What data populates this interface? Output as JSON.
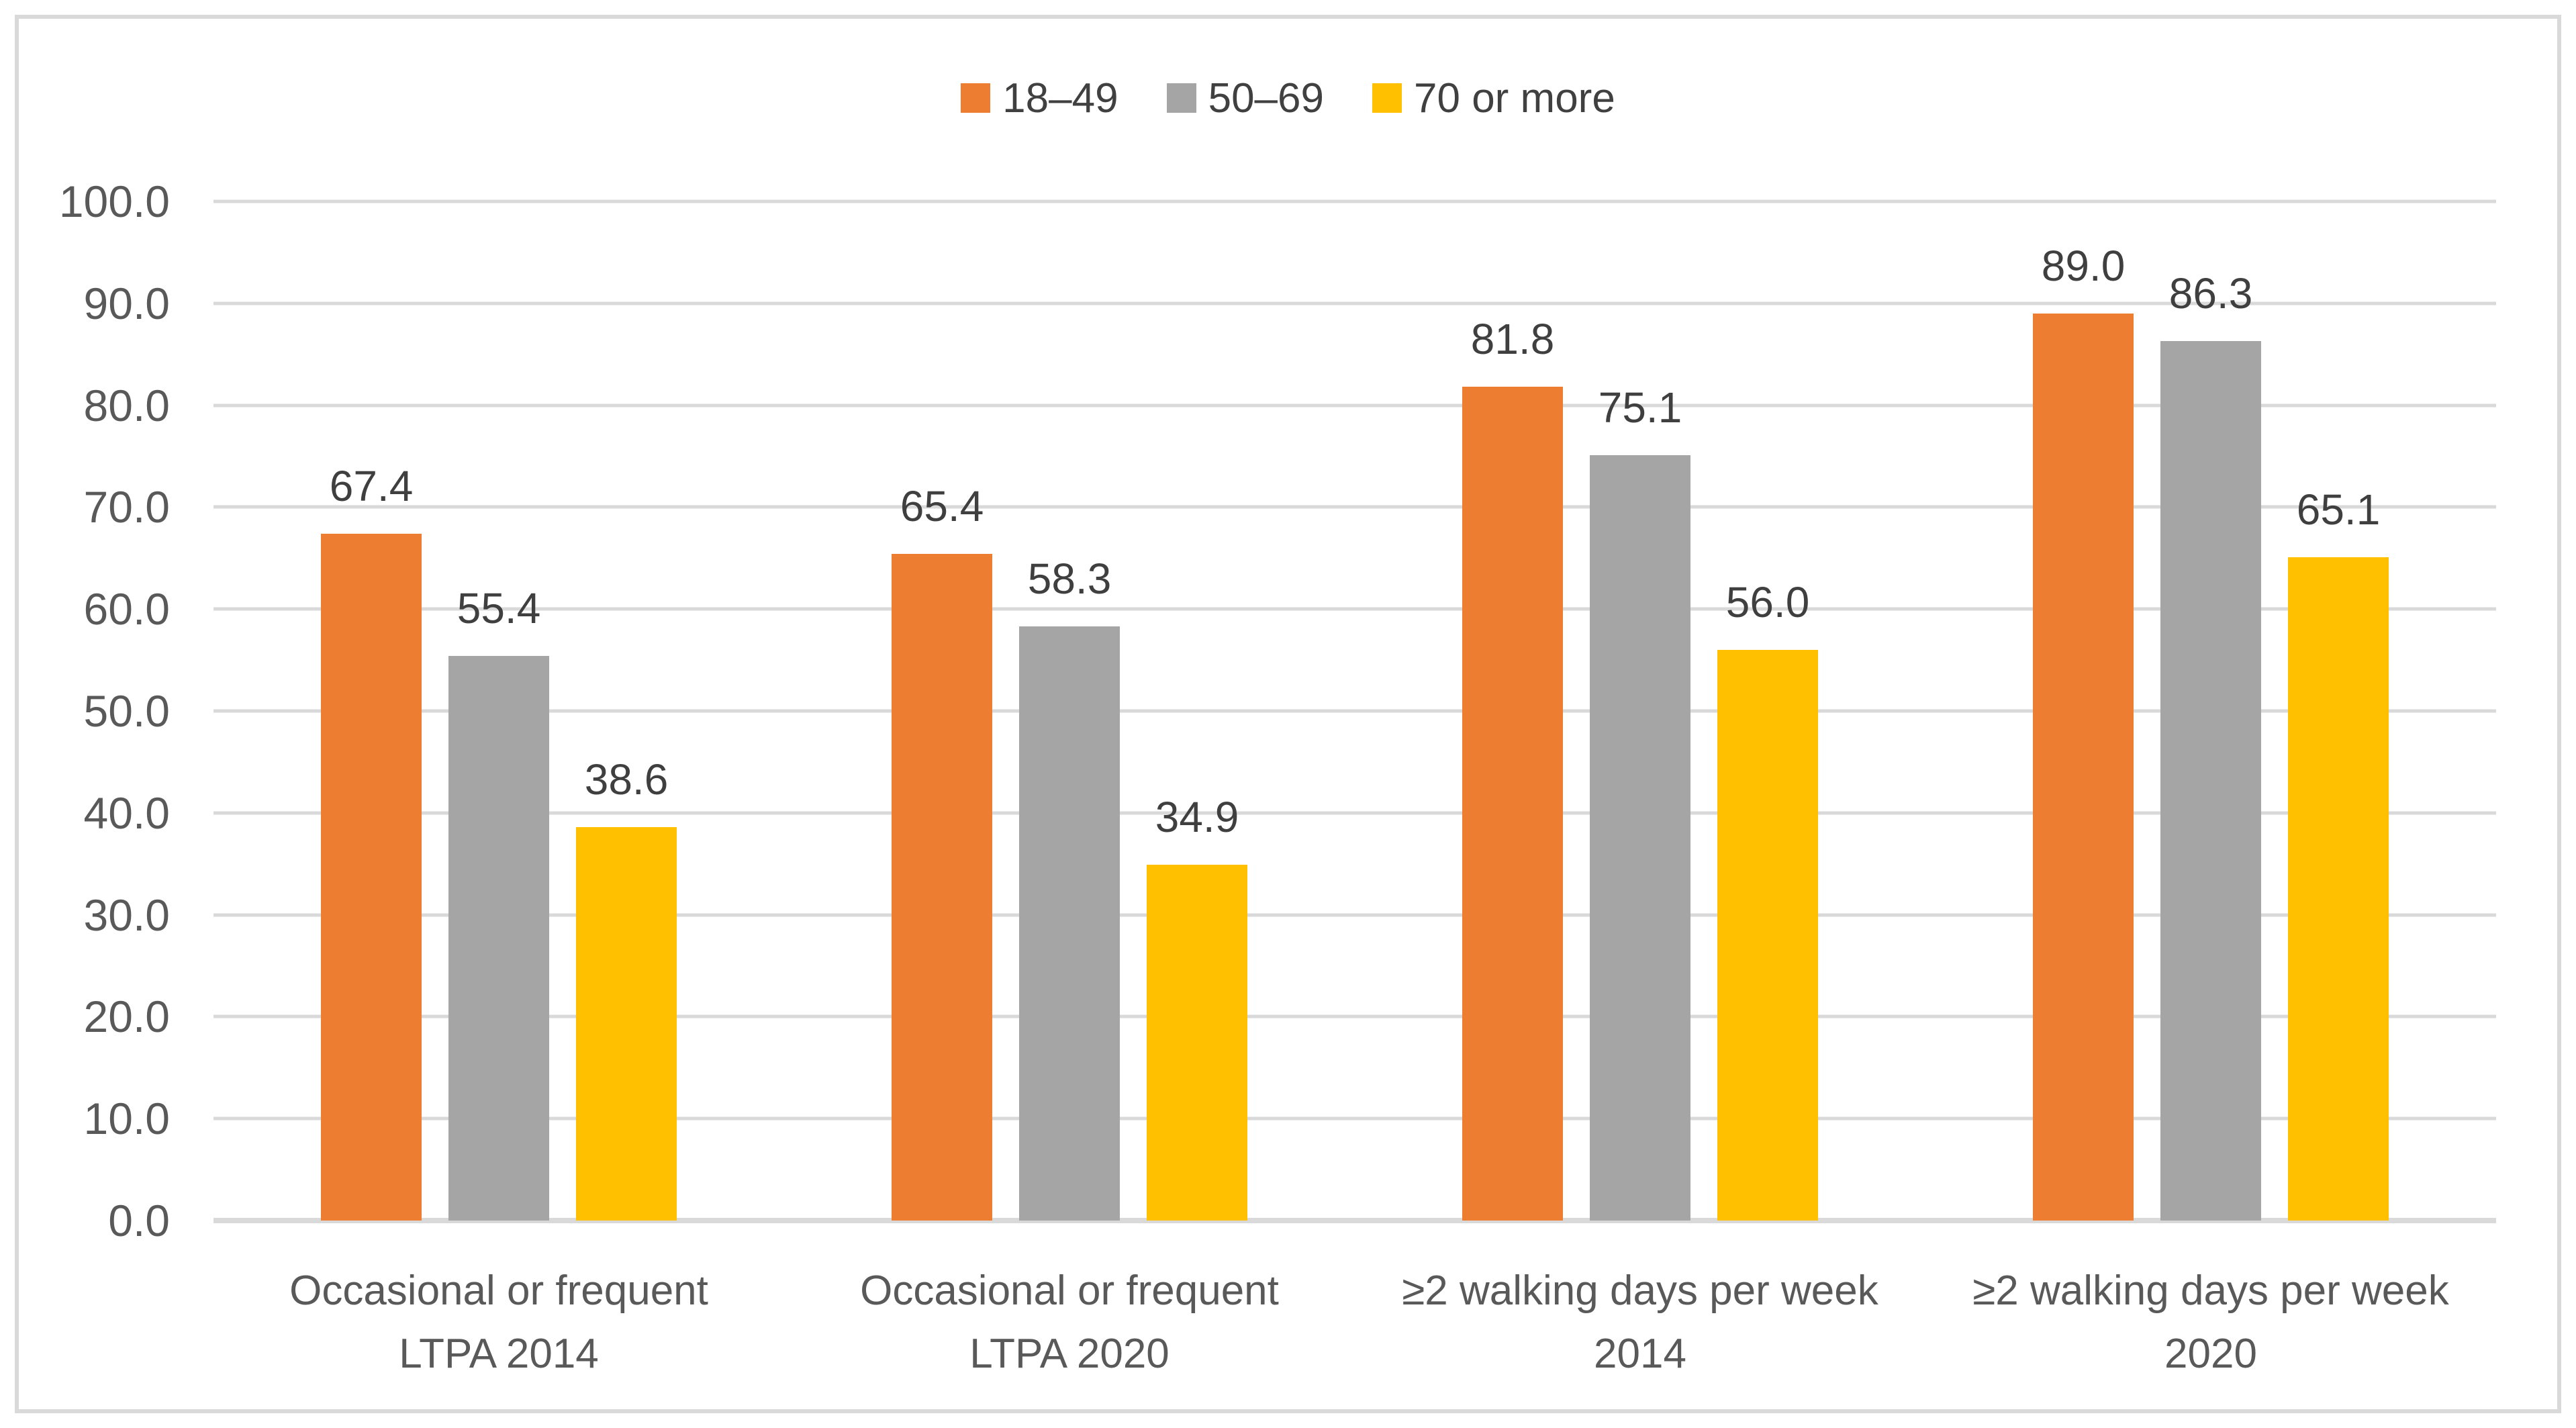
{
  "figure": {
    "background_color": "#FFFFFF",
    "frame_border_color": "#D9D9D9",
    "gridline_color": "#D9D9D9",
    "axis_text_color": "#595959",
    "data_label_color": "#3F3F3F",
    "legend_text_color": "#404040"
  },
  "chart_data": {
    "type": "bar",
    "title": "",
    "xlabel": "",
    "ylabel": "",
    "categories": [
      "Occasional or frequent\nLTPA 2014",
      "Occasional or frequent\nLTPA 2020",
      "≥2 walking days per week\n2014",
      "≥2 walking days per week\n2020"
    ],
    "series": [
      {
        "name": "18–49",
        "color": "#ED7D31",
        "values": [
          67.4,
          65.4,
          81.8,
          89.0
        ]
      },
      {
        "name": "50–69",
        "color": "#A5A5A5",
        "values": [
          55.4,
          58.3,
          75.1,
          86.3
        ]
      },
      {
        "name": "70 or more",
        "color": "#FFC000",
        "values": [
          38.6,
          34.9,
          56.0,
          65.1
        ]
      }
    ],
    "data_labels": [
      [
        "67.4",
        "65.4",
        "81.8",
        "89.0"
      ],
      [
        "55.4",
        "58.3",
        "75.1",
        "86.3"
      ],
      [
        "38.6",
        "34.9",
        "56.0",
        "65.1"
      ]
    ],
    "ylim": [
      0,
      100
    ],
    "ytick_step": 10,
    "ytick_labels": [
      "0.0",
      "10.0",
      "20.0",
      "30.0",
      "40.0",
      "50.0",
      "60.0",
      "70.0",
      "80.0",
      "90.0",
      "100.0"
    ],
    "grid": true,
    "legend_position": "top"
  }
}
